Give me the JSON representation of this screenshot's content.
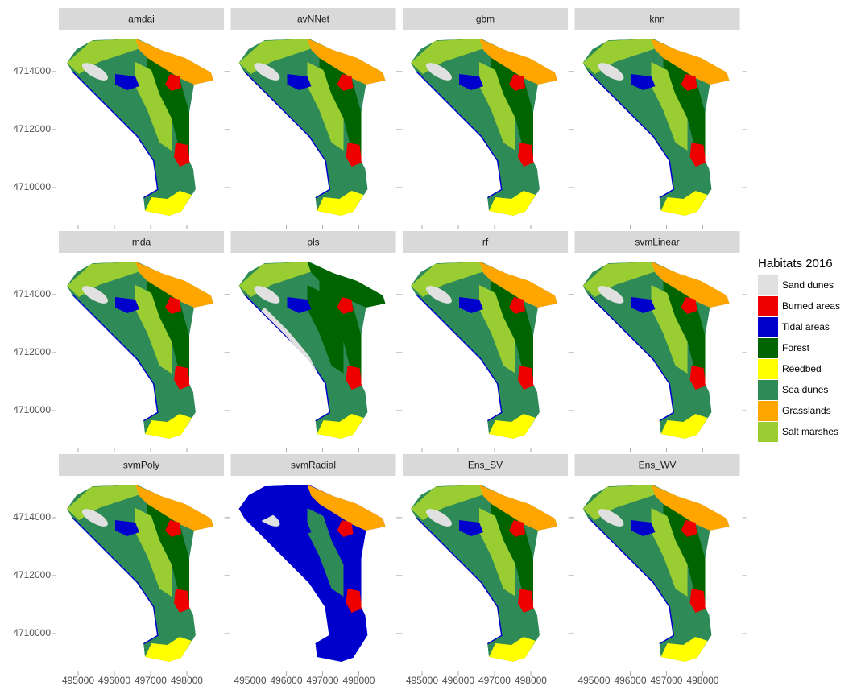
{
  "map": {
    "facets": [
      "amdai",
      "avNNet",
      "gbm",
      "knn",
      "mda",
      "pls",
      "rf",
      "svmLinear",
      "svmPoly",
      "svmRadial",
      "Ens_SV",
      "Ens_WV"
    ],
    "xlim": [
      494467,
      499023
    ],
    "ylim": [
      4708750,
      4715440
    ],
    "xticks": [
      495000,
      496000,
      497000,
      498000
    ],
    "yticks": [
      4714000,
      4712000,
      4710000
    ],
    "legend": {
      "title": "Habitats 2016",
      "items": [
        {
          "label": "Sand dunes",
          "color": "#e0e0e0"
        },
        {
          "label": "Burned areas",
          "color": "#ee0000"
        },
        {
          "label": "Tidal areas",
          "color": "#0000cd"
        },
        {
          "label": "Forest",
          "color": "#006400"
        },
        {
          "label": "Reedbed",
          "color": "#ffff00"
        },
        {
          "label": "Sea dunes",
          "color": "#2e8b57"
        },
        {
          "label": "Grasslands",
          "color": "#ffa500"
        },
        {
          "label": "Salt marshes",
          "color": "#9acd32"
        }
      ]
    }
  }
}
